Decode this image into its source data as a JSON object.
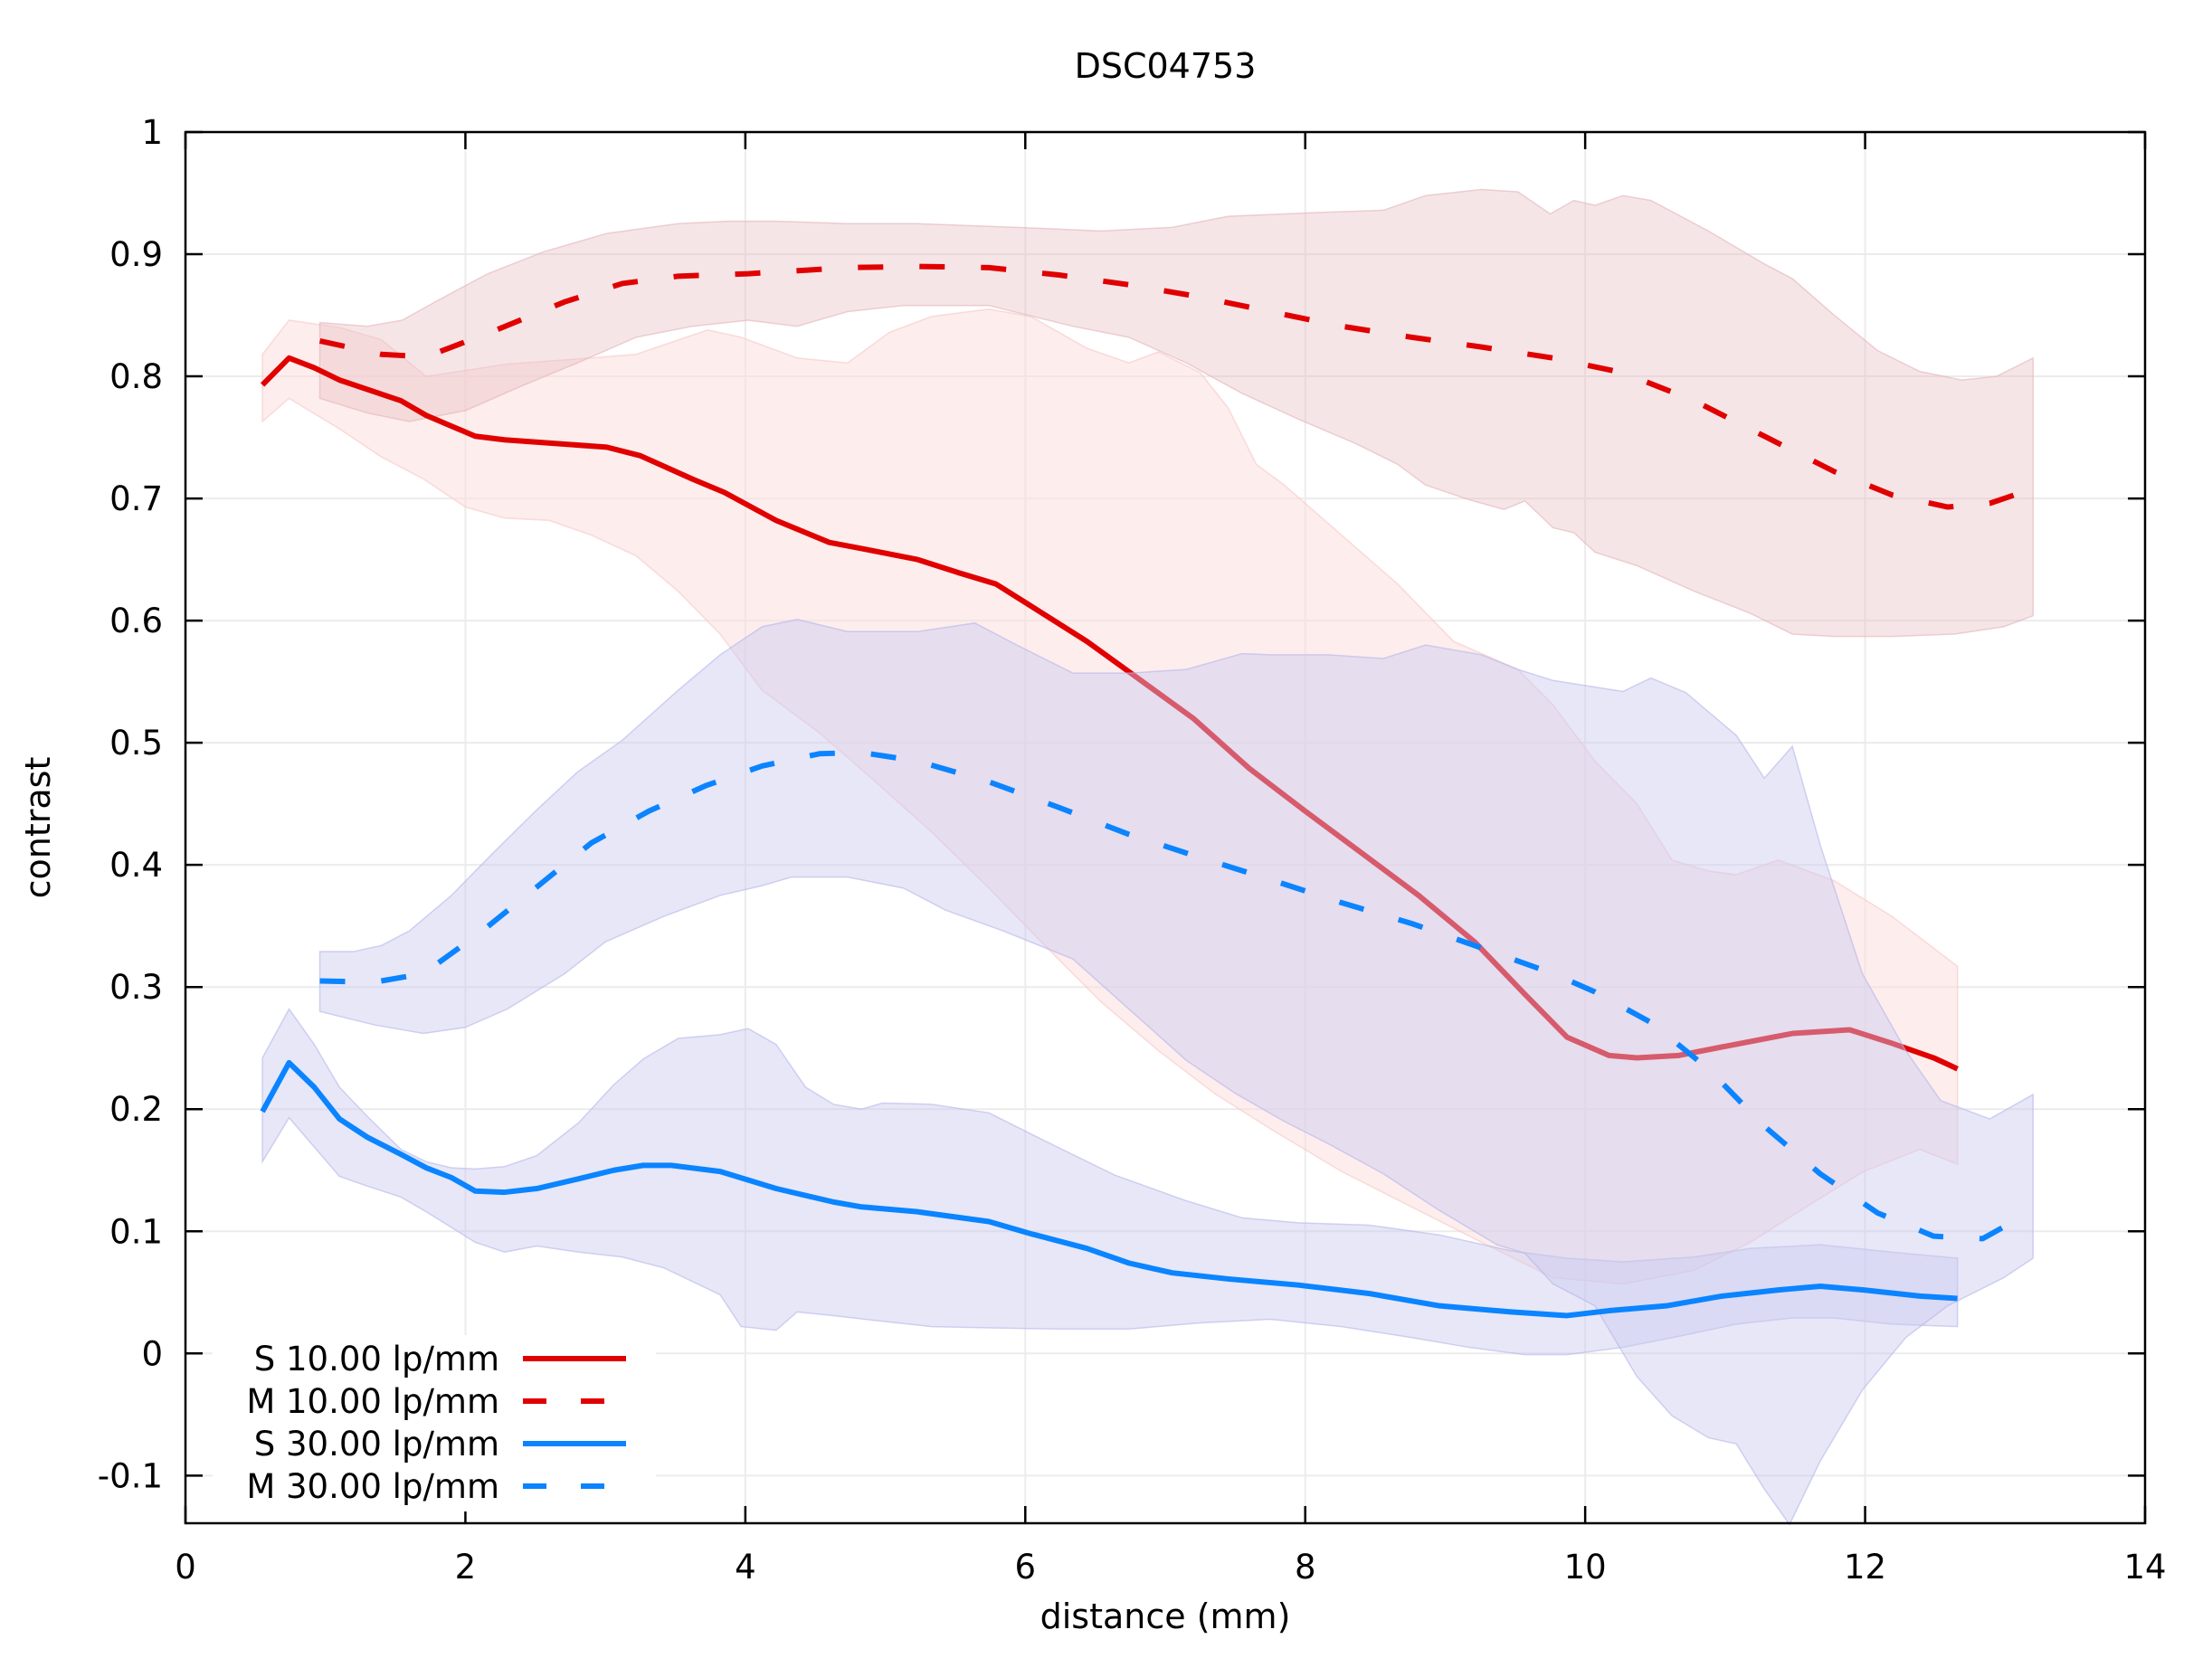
{
  "chart_data": {
    "type": "line",
    "title": "DSC04753",
    "xlabel": "distance (mm)",
    "ylabel": "contrast",
    "xlim": [
      0,
      14
    ],
    "ylim": [
      -0.139,
      1
    ],
    "xticks": [
      0,
      2,
      4,
      6,
      8,
      10,
      12,
      14
    ],
    "xtick_labels": [
      "0",
      "2",
      "4",
      "6",
      "8",
      "10",
      "12",
      "14"
    ],
    "yticks": [
      1,
      0.9,
      0.8,
      0.7,
      0.6,
      0.5,
      0.4,
      0.3,
      0.2,
      0.1,
      0,
      -0.1
    ],
    "ytick_labels": [
      "1",
      "0.9",
      "0.8",
      "0.7",
      "0.6",
      "0.5",
      "0.4",
      "0.3",
      "0.2",
      "0.1",
      "0",
      "-0.1"
    ],
    "grid": true,
    "legend_position": "bottom-left",
    "colors": {
      "red": "#e00000",
      "blue": "#0a84ff",
      "red_band_s": "#fde4e4",
      "red_band_m": "#f2dcdd",
      "blue_band": "#d6d6f3"
    },
    "series": [
      {
        "name": "S 10.00 lp/mm",
        "color": "#e00000",
        "dash": "solid",
        "x": [
          0.55,
          0.74,
          0.92,
          1.1,
          1.54,
          1.72,
          2.07,
          2.28,
          3.01,
          3.25,
          3.62,
          3.85,
          4.22,
          4.6,
          4.83,
          5.23,
          5.53,
          5.79,
          6.04,
          6.44,
          6.79,
          7.2,
          7.6,
          8.0,
          8.4,
          8.81,
          9.21,
          9.57,
          9.87,
          10.17,
          10.37,
          10.67,
          10.98,
          11.48,
          11.89,
          12.19,
          12.49,
          12.66
        ],
        "y": [
          0.793,
          0.815,
          0.807,
          0.797,
          0.78,
          0.768,
          0.751,
          0.748,
          0.742,
          0.735,
          0.716,
          0.705,
          0.682,
          0.664,
          0.659,
          0.65,
          0.639,
          0.63,
          0.612,
          0.583,
          0.554,
          0.52,
          0.479,
          0.444,
          0.41,
          0.375,
          0.337,
          0.294,
          0.259,
          0.244,
          0.242,
          0.244,
          0.251,
          0.262,
          0.265,
          0.254,
          0.242,
          0.233
        ],
        "band_upper": {
          "x": [
            0.55,
            0.74,
            1.1,
            1.4,
            1.72,
            2.3,
            2.66,
            3.22,
            3.73,
            3.97,
            4.37,
            4.73,
            5.03,
            5.33,
            5.74,
            6.04,
            6.44,
            6.74,
            6.95,
            7.25,
            7.45,
            7.65,
            7.85,
            8.26,
            8.66,
            9.06,
            9.52,
            9.77,
            10.07,
            10.37,
            10.62,
            10.88,
            11.08,
            11.38,
            11.78,
            12.19,
            12.66
          ],
          "y": [
            0.818,
            0.846,
            0.84,
            0.83,
            0.8,
            0.81,
            0.813,
            0.818,
            0.838,
            0.832,
            0.815,
            0.811,
            0.836,
            0.849,
            0.855,
            0.849,
            0.823,
            0.811,
            0.82,
            0.803,
            0.774,
            0.728,
            0.711,
            0.67,
            0.63,
            0.583,
            0.56,
            0.531,
            0.485,
            0.45,
            0.404,
            0.395,
            0.392,
            0.404,
            0.387,
            0.358,
            0.317
          ]
        },
        "band_lower": {
          "x": [
            0.55,
            0.74,
            1.1,
            1.4,
            1.7,
            2.0,
            2.28,
            2.6,
            2.9,
            3.22,
            3.52,
            3.82,
            4.12,
            4.53,
            4.93,
            5.33,
            5.74,
            6.14,
            6.54,
            6.95,
            7.35,
            7.75,
            8.26,
            8.76,
            9.26,
            9.77,
            10.27,
            10.78,
            11.18,
            11.58,
            11.99,
            12.39,
            12.66
          ],
          "y": [
            0.763,
            0.782,
            0.757,
            0.734,
            0.716,
            0.693,
            0.684,
            0.682,
            0.67,
            0.653,
            0.624,
            0.589,
            0.543,
            0.508,
            0.468,
            0.427,
            0.381,
            0.334,
            0.288,
            0.248,
            0.213,
            0.184,
            0.149,
            0.12,
            0.091,
            0.062,
            0.057,
            0.068,
            0.091,
            0.12,
            0.149,
            0.167,
            0.155
          ]
        }
      },
      {
        "name": "M 10.00 lp/mm",
        "color": "#e00000",
        "dash": "dashed",
        "x": [
          0.96,
          1.4,
          1.72,
          2.2,
          2.71,
          3.12,
          3.52,
          4.02,
          4.73,
          5.23,
          5.74,
          6.24,
          6.74,
          7.25,
          7.75,
          8.26,
          8.76,
          9.26,
          9.77,
          10.27,
          10.78,
          11.28,
          11.78,
          12.19,
          12.59,
          12.89,
          13.2
        ],
        "y": [
          0.829,
          0.818,
          0.816,
          0.837,
          0.861,
          0.876,
          0.882,
          0.884,
          0.889,
          0.89,
          0.889,
          0.883,
          0.875,
          0.865,
          0.853,
          0.841,
          0.832,
          0.824,
          0.815,
          0.803,
          0.78,
          0.751,
          0.722,
          0.703,
          0.693,
          0.696,
          0.708
        ],
        "band_upper": {
          "x": [
            0.96,
            1.3,
            1.55,
            1.8,
            2.16,
            2.56,
            3.01,
            3.52,
            3.87,
            4.22,
            4.73,
            5.23,
            5.94,
            6.54,
            7.05,
            7.45,
            8.06,
            8.56,
            8.86,
            9.26,
            9.52,
            9.75,
            9.92,
            10.07,
            10.27,
            10.47,
            10.88,
            11.28,
            11.48,
            11.78,
            12.09,
            12.39,
            12.69,
            12.94,
            13.2
          ],
          "y": [
            0.844,
            0.841,
            0.846,
            0.862,
            0.884,
            0.902,
            0.917,
            0.925,
            0.927,
            0.927,
            0.925,
            0.925,
            0.922,
            0.919,
            0.922,
            0.931,
            0.934,
            0.936,
            0.948,
            0.953,
            0.951,
            0.933,
            0.944,
            0.94,
            0.948,
            0.944,
            0.919,
            0.892,
            0.88,
            0.85,
            0.821,
            0.804,
            0.797,
            0.8,
            0.815
          ]
        },
        "band_lower": {
          "x": [
            0.96,
            1.3,
            1.6,
            2.0,
            2.4,
            2.8,
            3.22,
            3.62,
            4.02,
            4.37,
            4.73,
            5.13,
            5.74,
            6.34,
            6.74,
            7.15,
            7.55,
            7.95,
            8.36,
            8.66,
            8.86,
            9.17,
            9.42,
            9.57,
            9.77,
            9.92,
            10.07,
            10.37,
            10.78,
            11.18,
            11.48,
            11.78,
            12.19,
            12.64,
            12.99,
            13.2
          ],
          "y": [
            0.782,
            0.77,
            0.763,
            0.772,
            0.792,
            0.811,
            0.832,
            0.841,
            0.846,
            0.841,
            0.853,
            0.858,
            0.858,
            0.841,
            0.832,
            0.811,
            0.786,
            0.765,
            0.745,
            0.728,
            0.711,
            0.699,
            0.691,
            0.698,
            0.676,
            0.672,
            0.656,
            0.645,
            0.624,
            0.606,
            0.589,
            0.587,
            0.587,
            0.589,
            0.595,
            0.604
          ]
        }
      },
      {
        "name": "S 30.00 lp/mm",
        "color": "#0a84ff",
        "dash": "solid",
        "x": [
          0.55,
          0.74,
          0.92,
          1.1,
          1.3,
          1.54,
          1.72,
          1.9,
          2.07,
          2.28,
          2.51,
          2.81,
          3.06,
          3.27,
          3.47,
          3.82,
          4.22,
          4.63,
          4.83,
          5.23,
          5.74,
          6.04,
          6.44,
          6.74,
          7.05,
          7.45,
          7.95,
          8.46,
          8.96,
          9.47,
          9.87,
          10.17,
          10.58,
          10.98,
          11.38,
          11.68,
          11.99,
          12.39,
          12.66
        ],
        "y": [
          0.198,
          0.238,
          0.218,
          0.192,
          0.177,
          0.163,
          0.152,
          0.144,
          0.133,
          0.132,
          0.135,
          0.143,
          0.15,
          0.154,
          0.154,
          0.149,
          0.135,
          0.124,
          0.12,
          0.116,
          0.108,
          0.098,
          0.086,
          0.074,
          0.066,
          0.061,
          0.056,
          0.049,
          0.039,
          0.034,
          0.031,
          0.035,
          0.039,
          0.047,
          0.052,
          0.055,
          0.052,
          0.047,
          0.045
        ],
        "band_upper": {
          "x": [
            0.55,
            0.74,
            0.92,
            1.1,
            1.3,
            1.54,
            1.72,
            1.9,
            2.07,
            2.28,
            2.51,
            2.81,
            3.06,
            3.27,
            3.52,
            3.82,
            4.02,
            4.22,
            4.43,
            4.63,
            4.83,
            4.98,
            5.33,
            5.74,
            6.14,
            6.64,
            7.15,
            7.55,
            7.95,
            8.46,
            8.96,
            9.47,
            9.87,
            10.27,
            10.78,
            11.18,
            11.68,
            12.19,
            12.66
          ],
          "y": [
            0.242,
            0.282,
            0.253,
            0.218,
            0.194,
            0.167,
            0.157,
            0.152,
            0.151,
            0.153,
            0.162,
            0.189,
            0.22,
            0.241,
            0.258,
            0.261,
            0.266,
            0.253,
            0.218,
            0.204,
            0.2,
            0.205,
            0.204,
            0.197,
            0.174,
            0.146,
            0.125,
            0.111,
            0.107,
            0.105,
            0.097,
            0.084,
            0.078,
            0.075,
            0.079,
            0.086,
            0.089,
            0.083,
            0.078
          ]
        },
        "band_lower": {
          "x": [
            0.55,
            0.74,
            0.92,
            1.1,
            1.3,
            1.54,
            1.72,
            2.07,
            2.28,
            2.51,
            2.81,
            3.12,
            3.42,
            3.82,
            3.97,
            4.22,
            4.37,
            4.63,
            4.93,
            5.33,
            5.74,
            6.24,
            6.74,
            7.25,
            7.75,
            8.26,
            8.76,
            9.17,
            9.57,
            9.87,
            10.27,
            10.67,
            11.08,
            11.48,
            11.78,
            12.19,
            12.66
          ],
          "y": [
            0.157,
            0.193,
            0.169,
            0.145,
            0.137,
            0.128,
            0.116,
            0.091,
            0.083,
            0.088,
            0.083,
            0.079,
            0.07,
            0.048,
            0.022,
            0.019,
            0.034,
            0.031,
            0.027,
            0.022,
            0.021,
            0.02,
            0.02,
            0.025,
            0.028,
            0.022,
            0.013,
            0.005,
            -0.001,
            -0.001,
            0.005,
            0.014,
            0.024,
            0.029,
            0.029,
            0.024,
            0.022
          ]
        }
      },
      {
        "name": "M 30.00 lp/mm",
        "color": "#0a84ff",
        "dash": "dashed",
        "x": [
          0.96,
          1.35,
          1.7,
          2.1,
          2.5,
          2.9,
          3.31,
          3.72,
          4.12,
          4.53,
          4.83,
          5.23,
          5.74,
          6.24,
          6.74,
          7.25,
          7.75,
          8.26,
          8.76,
          9.26,
          9.77,
          10.07,
          10.47,
          10.88,
          11.28,
          11.68,
          12.09,
          12.49,
          12.84,
          13.2
        ],
        "y": [
          0.305,
          0.304,
          0.311,
          0.344,
          0.381,
          0.418,
          0.444,
          0.465,
          0.481,
          0.491,
          0.492,
          0.485,
          0.468,
          0.447,
          0.425,
          0.406,
          0.388,
          0.369,
          0.352,
          0.332,
          0.311,
          0.296,
          0.271,
          0.233,
          0.186,
          0.147,
          0.115,
          0.096,
          0.094,
          0.117
        ],
        "band_upper": {
          "x": [
            0.96,
            1.2,
            1.4,
            1.6,
            1.9,
            2.2,
            2.5,
            2.8,
            3.12,
            3.52,
            3.82,
            4.12,
            4.37,
            4.73,
            5.23,
            5.64,
            5.94,
            6.34,
            6.74,
            7.15,
            7.55,
            7.75,
            8.16,
            8.56,
            8.86,
            9.26,
            9.52,
            9.77,
            10.27,
            10.47,
            10.72,
            11.08,
            11.28,
            11.48,
            11.68,
            11.98,
            12.29,
            12.54,
            12.89,
            13.2
          ],
          "y": [
            0.329,
            0.329,
            0.334,
            0.346,
            0.375,
            0.41,
            0.444,
            0.476,
            0.502,
            0.543,
            0.572,
            0.595,
            0.601,
            0.591,
            0.591,
            0.598,
            0.58,
            0.557,
            0.557,
            0.56,
            0.573,
            0.572,
            0.572,
            0.569,
            0.58,
            0.572,
            0.56,
            0.551,
            0.542,
            0.553,
            0.541,
            0.506,
            0.471,
            0.497,
            0.416,
            0.311,
            0.248,
            0.207,
            0.192,
            0.212
          ]
        },
        "band_lower": {
          "x": [
            0.96,
            1.35,
            1.7,
            2.0,
            2.3,
            2.71,
            3.0,
            3.42,
            3.82,
            4.12,
            4.33,
            4.73,
            5.13,
            5.43,
            5.84,
            6.34,
            6.74,
            7.15,
            7.5,
            7.85,
            8.16,
            8.56,
            8.96,
            9.37,
            9.57,
            9.77,
            10.07,
            10.37,
            10.62,
            10.88,
            11.08,
            11.28,
            11.46,
            11.68,
            11.98,
            12.29,
            12.59,
            12.99,
            13.2
          ],
          "y": [
            0.28,
            0.269,
            0.262,
            0.267,
            0.282,
            0.311,
            0.337,
            0.358,
            0.375,
            0.383,
            0.39,
            0.39,
            0.381,
            0.363,
            0.346,
            0.323,
            0.282,
            0.24,
            0.213,
            0.19,
            0.172,
            0.147,
            0.117,
            0.089,
            0.082,
            0.057,
            0.039,
            -0.019,
            -0.051,
            -0.069,
            -0.074,
            -0.111,
            -0.14,
            -0.088,
            -0.03,
            0.013,
            0.039,
            0.062,
            0.078
          ]
        }
      }
    ],
    "legend": [
      {
        "label": "S 10.00 lp/mm",
        "color": "#e00000",
        "dash": "solid"
      },
      {
        "label": "M 10.00 lp/mm",
        "color": "#e00000",
        "dash": "dashed"
      },
      {
        "label": "S 30.00 lp/mm",
        "color": "#0a84ff",
        "dash": "solid"
      },
      {
        "label": "M 30.00 lp/mm",
        "color": "#0a84ff",
        "dash": "dashed"
      }
    ]
  }
}
